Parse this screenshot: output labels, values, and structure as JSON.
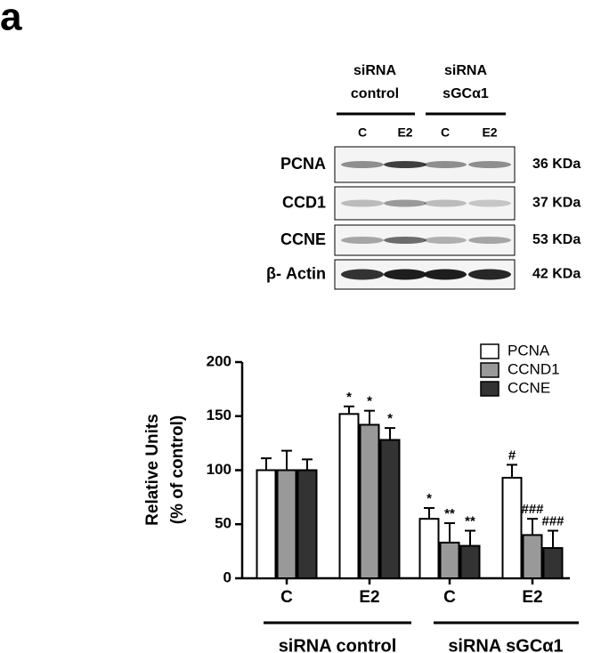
{
  "panel_label": "a",
  "blot": {
    "groups": [
      {
        "lines": [
          "siRNA",
          "control"
        ]
      },
      {
        "lines": [
          "siRNA",
          "sGCα1"
        ]
      }
    ],
    "lanes": [
      "C",
      "E2",
      "C",
      "E2"
    ],
    "rows": [
      {
        "label": "PCNA",
        "size": "36 KDa"
      },
      {
        "label": "CCD1",
        "size": "37 KDa"
      },
      {
        "label": "CCNE",
        "size": "53 KDa"
      },
      {
        "label": "β- Actin",
        "size": "42 KDa"
      }
    ]
  },
  "chart_data": {
    "type": "bar",
    "y_label": [
      "Relative Units",
      "(% of control)"
    ],
    "categories": [
      "C",
      "E2",
      "C",
      "E2"
    ],
    "groups": [
      "siRNA control",
      "siRNA sGCα1"
    ],
    "series": [
      {
        "name": "PCNA",
        "color": "#ffffff",
        "values": [
          100,
          152,
          55,
          93
        ],
        "errors": [
          11,
          7,
          10,
          12
        ],
        "annotations": [
          null,
          "*",
          "*",
          "#"
        ]
      },
      {
        "name": "CCND1",
        "color": "#999999",
        "values": [
          100,
          142,
          33,
          40
        ],
        "errors": [
          18,
          13,
          18,
          15
        ],
        "annotations": [
          null,
          "*",
          "**",
          "###"
        ]
      },
      {
        "name": "CCNE",
        "color": "#333333",
        "values": [
          100,
          128,
          30,
          28
        ],
        "errors": [
          10,
          11,
          14,
          16
        ],
        "annotations": [
          null,
          "*",
          "**",
          "###"
        ]
      }
    ],
    "ylim": [
      0,
      200
    ],
    "yticks": [
      0,
      50,
      100,
      150,
      200
    ]
  }
}
